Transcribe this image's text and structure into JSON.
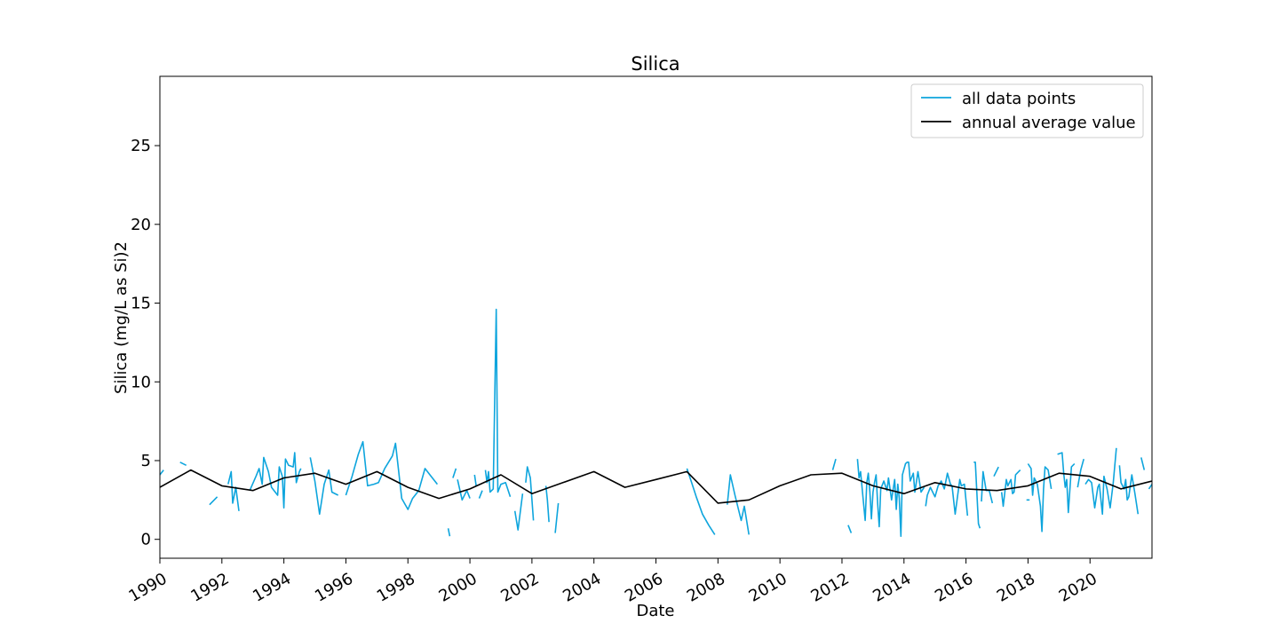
{
  "chart_data": {
    "type": "line",
    "title": "Silica",
    "xlabel": "Date",
    "ylabel": "Silica (mg/L as Si)2",
    "xlim": [
      "1990-01-01",
      "2021-12-31"
    ],
    "ylim": [
      -1.2,
      29.4
    ],
    "x_ticks": [
      "1990",
      "1992",
      "1994",
      "1996",
      "1998",
      "2000",
      "2002",
      "2004",
      "2006",
      "2008",
      "2010",
      "2012",
      "2014",
      "2016",
      "2018",
      "2020"
    ],
    "y_ticks": [
      0,
      5,
      10,
      15,
      20,
      25
    ],
    "grid": false,
    "legend": "top-right",
    "colors": {
      "all_data": "#0ea5dd",
      "annual_average": "#000000"
    },
    "series": [
      {
        "name": "all data points",
        "segments": [
          [
            [
              "1990.0",
              4.1
            ],
            [
              "1990.12",
              4.4
            ]
          ],
          [
            [
              "1990.65",
              4.9
            ],
            [
              "1990.85",
              4.7
            ]
          ],
          [
            [
              "1991.6",
              2.2
            ],
            [
              "1991.85",
              2.7
            ]
          ],
          [
            [
              "1992.2",
              3.5
            ],
            [
              "1992.3",
              4.3
            ],
            [
              "1992.35",
              2.3
            ],
            [
              "1992.45",
              3.3
            ],
            [
              "1992.55",
              1.8
            ]
          ],
          [
            [
              "1992.9",
              3.1
            ],
            [
              "1993.1",
              4.0
            ],
            [
              "1993.2",
              4.5
            ],
            [
              "1993.3",
              3.5
            ],
            [
              "1993.35",
              5.2
            ],
            [
              "1993.5",
              4.3
            ],
            [
              "1993.6",
              3.3
            ],
            [
              "1993.8",
              2.8
            ],
            [
              "1993.85",
              4.6
            ],
            [
              "1993.95",
              4.0
            ],
            [
              "1994.0",
              2.0
            ],
            [
              "1994.05",
              5.1
            ],
            [
              "1994.15",
              4.7
            ],
            [
              "1994.3",
              4.6
            ],
            [
              "1994.35",
              5.5
            ],
            [
              "1994.4",
              3.6
            ],
            [
              "1994.5",
              4.3
            ],
            [
              "1994.55",
              4.5
            ]
          ],
          [
            [
              "1994.85",
              5.2
            ],
            [
              "1995.0",
              3.7
            ],
            [
              "1995.15",
              1.6
            ],
            [
              "1995.3",
              3.5
            ],
            [
              "1995.45",
              4.4
            ],
            [
              "1995.55",
              3.0
            ],
            [
              "1995.75",
              2.8
            ]
          ],
          [
            [
              "1996.0",
              2.8
            ],
            [
              "1996.2",
              4.0
            ],
            [
              "1996.4",
              5.4
            ],
            [
              "1996.55",
              6.2
            ],
            [
              "1996.7",
              3.4
            ],
            [
              "1996.9",
              3.5
            ],
            [
              "1997.05",
              3.6
            ],
            [
              "1997.25",
              4.5
            ],
            [
              "1997.5",
              5.3
            ],
            [
              "1997.6",
              6.1
            ],
            [
              "1997.8",
              2.6
            ],
            [
              "1998.0",
              1.9
            ],
            [
              "1998.15",
              2.6
            ],
            [
              "1998.35",
              3.1
            ],
            [
              "1998.55",
              4.5
            ],
            [
              "1998.75",
              4.0
            ],
            [
              "1998.95",
              3.5
            ]
          ],
          [
            [
              "1999.3",
              0.7
            ],
            [
              "1999.35",
              0.2
            ]
          ],
          [
            [
              "1999.45",
              3.9
            ],
            [
              "1999.55",
              4.5
            ]
          ],
          [
            [
              "1999.6",
              3.8
            ],
            [
              "1999.75",
              2.5
            ],
            [
              "1999.9",
              3.1
            ],
            [
              "2000.0",
              2.6
            ]
          ],
          [
            [
              "2000.15",
              4.1
            ],
            [
              "2000.2",
              3.4
            ]
          ],
          [
            [
              "2000.3",
              2.6
            ],
            [
              "2000.4",
              3.1
            ]
          ],
          [
            [
              "2000.5",
              4.4
            ],
            [
              "2000.55",
              3.6
            ],
            [
              "2000.6",
              4.3
            ],
            [
              "2000.65",
              3.0
            ],
            [
              "2000.75",
              3.2
            ],
            [
              "2000.85",
              14.6
            ],
            [
              "2000.9",
              3.0
            ],
            [
              "2001.0",
              3.5
            ],
            [
              "2001.15",
              3.6
            ],
            [
              "2001.3",
              2.7
            ]
          ],
          [
            [
              "2001.45",
              1.8
            ],
            [
              "2001.55",
              0.6
            ],
            [
              "2001.7",
              2.9
            ]
          ],
          [
            [
              "2001.8",
              3.6
            ],
            [
              "2001.85",
              4.6
            ],
            [
              "2001.95",
              3.9
            ],
            [
              "2002.05",
              1.2
            ]
          ],
          [
            [
              "2002.45",
              3.4
            ],
            [
              "2002.5",
              2.5
            ],
            [
              "2002.55",
              1.1
            ]
          ],
          [
            [
              "2002.75",
              0.4
            ],
            [
              "2002.85",
              2.3
            ]
          ],
          [
            [
              "2007.0",
              4.5
            ],
            [
              "2007.15",
              3.6
            ],
            [
              "2007.3",
              2.7
            ],
            [
              "2007.5",
              1.6
            ],
            [
              "2007.7",
              0.9
            ],
            [
              "2007.9",
              0.3
            ]
          ],
          [
            [
              "2008.3",
              2.2
            ],
            [
              "2008.4",
              4.1
            ],
            [
              "2008.55",
              2.8
            ],
            [
              "2008.75",
              1.2
            ],
            [
              "2008.85",
              2.1
            ],
            [
              "2009.0",
              0.3
            ]
          ],
          [
            [
              "2011.7",
              4.4
            ],
            [
              "2011.8",
              5.1
            ]
          ],
          [
            [
              "2012.2",
              0.9
            ],
            [
              "2012.3",
              0.4
            ]
          ],
          [
            [
              "2012.5",
              5.1
            ],
            [
              "2012.55",
              3.9
            ],
            [
              "2012.6",
              4.3
            ],
            [
              "2012.7",
              2.2
            ],
            [
              "2012.75",
              1.2
            ],
            [
              "2012.8",
              3.6
            ],
            [
              "2012.85",
              4.2
            ],
            [
              "2012.9",
              3.0
            ],
            [
              "2012.95",
              1.3
            ],
            [
              "2013.0",
              3.0
            ],
            [
              "2013.05",
              3.6
            ],
            [
              "2013.1",
              4.1
            ],
            [
              "2013.15",
              2.3
            ],
            [
              "2013.2",
              0.8
            ],
            [
              "2013.25",
              3.2
            ],
            [
              "2013.35",
              3.7
            ],
            [
              "2013.45",
              3.1
            ],
            [
              "2013.5",
              3.9
            ],
            [
              "2013.6",
              2.5
            ],
            [
              "2013.7",
              3.8
            ],
            [
              "2013.75",
              1.9
            ],
            [
              "2013.8",
              3.5
            ],
            [
              "2013.85",
              2.6
            ],
            [
              "2013.9",
              0.2
            ],
            [
              "2013.95",
              4.1
            ],
            [
              "2014.05",
              4.8
            ],
            [
              "2014.1",
              4.9
            ],
            [
              "2014.15",
              4.9
            ],
            [
              "2014.2",
              3.7
            ],
            [
              "2014.3",
              4.2
            ],
            [
              "2014.35",
              3.0
            ],
            [
              "2014.45",
              4.3
            ],
            [
              "2014.55",
              3.0
            ],
            [
              "2014.65",
              3.3
            ]
          ],
          [
            [
              "2014.7",
              2.1
            ],
            [
              "2014.75",
              2.8
            ],
            [
              "2014.85",
              3.3
            ],
            [
              "2015.0",
              2.7
            ],
            [
              "2015.1",
              3.4
            ],
            [
              "2015.2",
              3.7
            ],
            [
              "2015.3",
              3.2
            ],
            [
              "2015.4",
              4.2
            ],
            [
              "2015.5",
              3.5
            ],
            [
              "2015.55",
              3.4
            ],
            [
              "2015.65",
              1.6
            ],
            [
              "2015.8",
              3.8
            ],
            [
              "2015.85",
              3.4
            ],
            [
              "2015.95",
              3.5
            ],
            [
              "2016.05",
              1.5
            ]
          ],
          [
            [
              "2016.25",
              4.9
            ],
            [
              "2016.3",
              4.9
            ],
            [
              "2016.35",
              3.0
            ],
            [
              "2016.4",
              1.0
            ],
            [
              "2016.45",
              0.7
            ]
          ],
          [
            [
              "2016.5",
              2.4
            ],
            [
              "2016.55",
              4.3
            ],
            [
              "2016.65",
              3.1
            ],
            [
              "2016.75",
              3.1
            ],
            [
              "2016.85",
              2.3
            ]
          ],
          [
            [
              "2016.9",
              4.0
            ],
            [
              "2017.05",
              4.6
            ]
          ],
          [
            [
              "2017.15",
              3.0
            ],
            [
              "2017.2",
              2.1
            ],
            [
              "2017.3",
              3.8
            ],
            [
              "2017.35",
              3.4
            ],
            [
              "2017.45",
              3.8
            ],
            [
              "2017.5",
              2.9
            ],
            [
              "2017.55",
              3.0
            ],
            [
              "2017.6",
              4.1
            ],
            [
              "2017.75",
              4.4
            ]
          ],
          [
            [
              "2017.95",
              2.5
            ],
            [
              "2018.05",
              2.5
            ]
          ],
          [
            [
              "2018.0",
              4.8
            ],
            [
              "2018.1",
              4.5
            ],
            [
              "2018.15",
              2.8
            ],
            [
              "2018.2",
              3.9
            ],
            [
              "2018.3",
              3.5
            ],
            [
              "2018.4",
              2.1
            ],
            [
              "2018.45",
              0.5
            ],
            [
              "2018.5",
              3.2
            ],
            [
              "2018.55",
              4.6
            ],
            [
              "2018.65",
              4.4
            ],
            [
              "2018.75",
              3.2
            ]
          ],
          [
            [
              "2018.95",
              5.4
            ],
            [
              "2019.1",
              5.5
            ],
            [
              "2019.15",
              4.2
            ],
            [
              "2019.2",
              3.3
            ],
            [
              "2019.25",
              3.8
            ],
            [
              "2019.3",
              1.7
            ],
            [
              "2019.4",
              4.6
            ],
            [
              "2019.5",
              4.8
            ]
          ],
          [
            [
              "2019.6",
              3.3
            ],
            [
              "2019.7",
              4.4
            ],
            [
              "2019.8",
              5.1
            ]
          ],
          [
            [
              "2019.85",
              3.5
            ],
            [
              "2019.95",
              3.8
            ],
            [
              "2020.05",
              3.6
            ],
            [
              "2020.15",
              2.0
            ],
            [
              "2020.25",
              3.3
            ],
            [
              "2020.3",
              3.5
            ],
            [
              "2020.4",
              1.6
            ],
            [
              "2020.45",
              4.0
            ],
            [
              "2020.55",
              3.2
            ],
            [
              "2020.65",
              2.0
            ],
            [
              "2020.75",
              3.6
            ],
            [
              "2020.85",
              5.8
            ]
          ],
          [
            [
              "2020.95",
              4.7
            ],
            [
              "2021.0",
              3.6
            ],
            [
              "2021.1",
              3.2
            ],
            [
              "2021.15",
              3.8
            ],
            [
              "2021.2",
              2.5
            ],
            [
              "2021.25",
              2.7
            ],
            [
              "2021.35",
              4.1
            ],
            [
              "2021.45",
              2.9
            ],
            [
              "2021.55",
              1.6
            ]
          ],
          [
            [
              "2021.65",
              5.2
            ],
            [
              "2021.75",
              4.4
            ]
          ],
          [
            [
              "2021.9",
              3.2
            ],
            [
              "2022.0",
              3.5
            ]
          ]
        ]
      },
      {
        "name": "annual average value",
        "x": [
          "1990",
          "1991",
          "1992",
          "1993",
          "1994",
          "1995",
          "1996",
          "1997",
          "1998",
          "1999",
          "2000",
          "2001",
          "2002",
          "2003",
          "2004",
          "2005",
          "2006",
          "2007",
          "2008",
          "2009",
          "2010",
          "2011",
          "2012",
          "2013",
          "2014",
          "2015",
          "2016",
          "2017",
          "2018",
          "2019",
          "2020",
          "2021",
          "2022"
        ],
        "values": [
          3.3,
          4.4,
          3.4,
          3.1,
          3.9,
          4.2,
          3.5,
          4.3,
          3.3,
          2.6,
          3.2,
          4.1,
          2.9,
          3.6,
          4.3,
          3.3,
          3.8,
          4.3,
          2.3,
          2.5,
          3.4,
          4.1,
          4.2,
          3.4,
          2.9,
          3.6,
          3.2,
          3.1,
          3.4,
          4.2,
          4.0,
          3.2,
          3.7
        ]
      }
    ]
  }
}
